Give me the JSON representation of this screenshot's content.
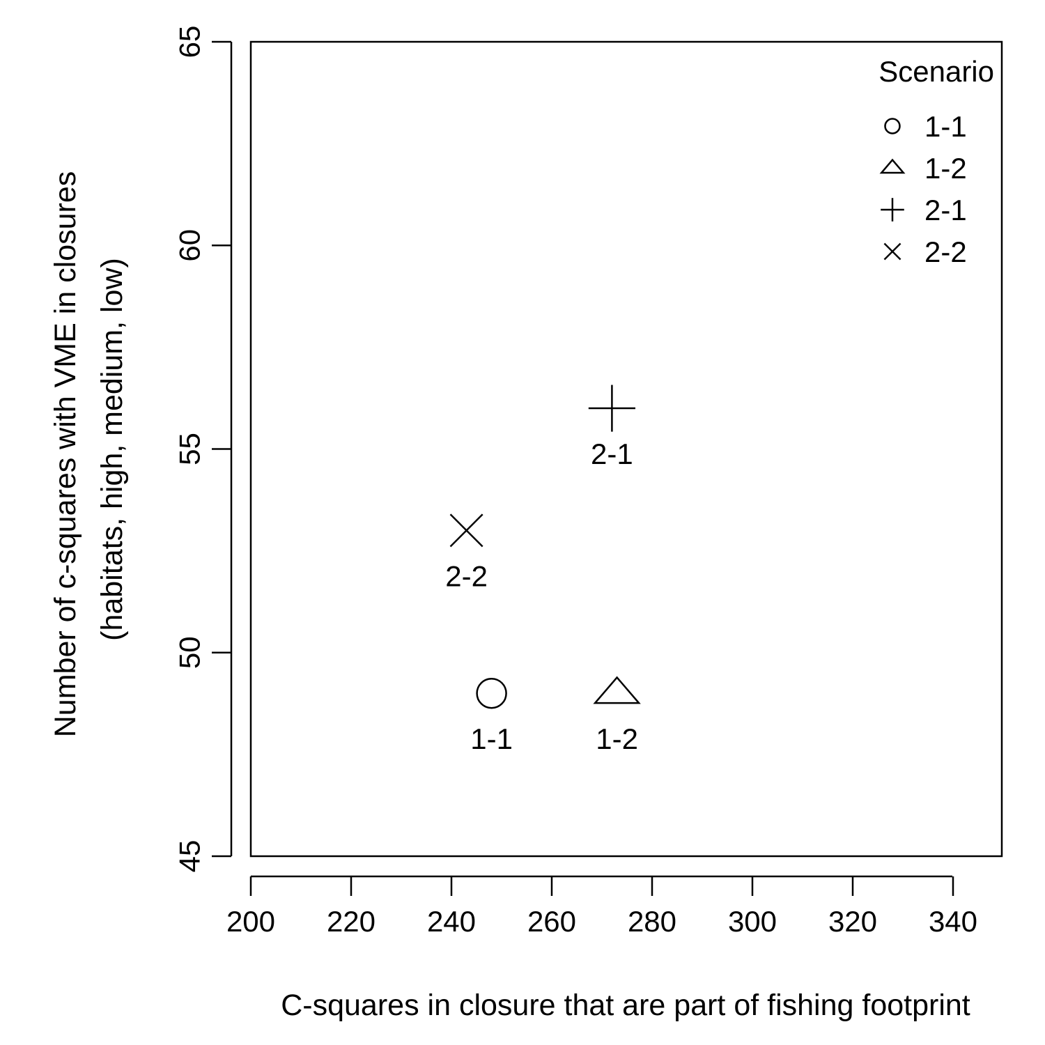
{
  "chart_data": {
    "type": "scatter",
    "title": "",
    "xlabel": "C-squares in closure that are part of fishing footprint",
    "ylabel_line1": "Number of c-squares with VME in closures",
    "ylabel_line2": "(habitats, high, medium, low)",
    "xlim": [
      200,
      350
    ],
    "ylim": [
      45,
      65
    ],
    "xticks": [
      200,
      220,
      240,
      260,
      280,
      300,
      320,
      340
    ],
    "yticks": [
      45,
      50,
      55,
      60,
      65
    ],
    "grid": false,
    "legend": {
      "title": "Scenario",
      "placement": "top-right",
      "entries": [
        {
          "label": "1-1",
          "marker": "circle"
        },
        {
          "label": "1-2",
          "marker": "triangle"
        },
        {
          "label": "2-1",
          "marker": "plus"
        },
        {
          "label": "2-2",
          "marker": "cross"
        }
      ]
    },
    "points": [
      {
        "label": "1-1",
        "marker": "circle",
        "x": 248,
        "y": 49
      },
      {
        "label": "1-2",
        "marker": "triangle",
        "x": 273,
        "y": 49
      },
      {
        "label": "2-1",
        "marker": "plus",
        "x": 272,
        "y": 56
      },
      {
        "label": "2-2",
        "marker": "cross",
        "x": 243,
        "y": 53
      }
    ]
  }
}
